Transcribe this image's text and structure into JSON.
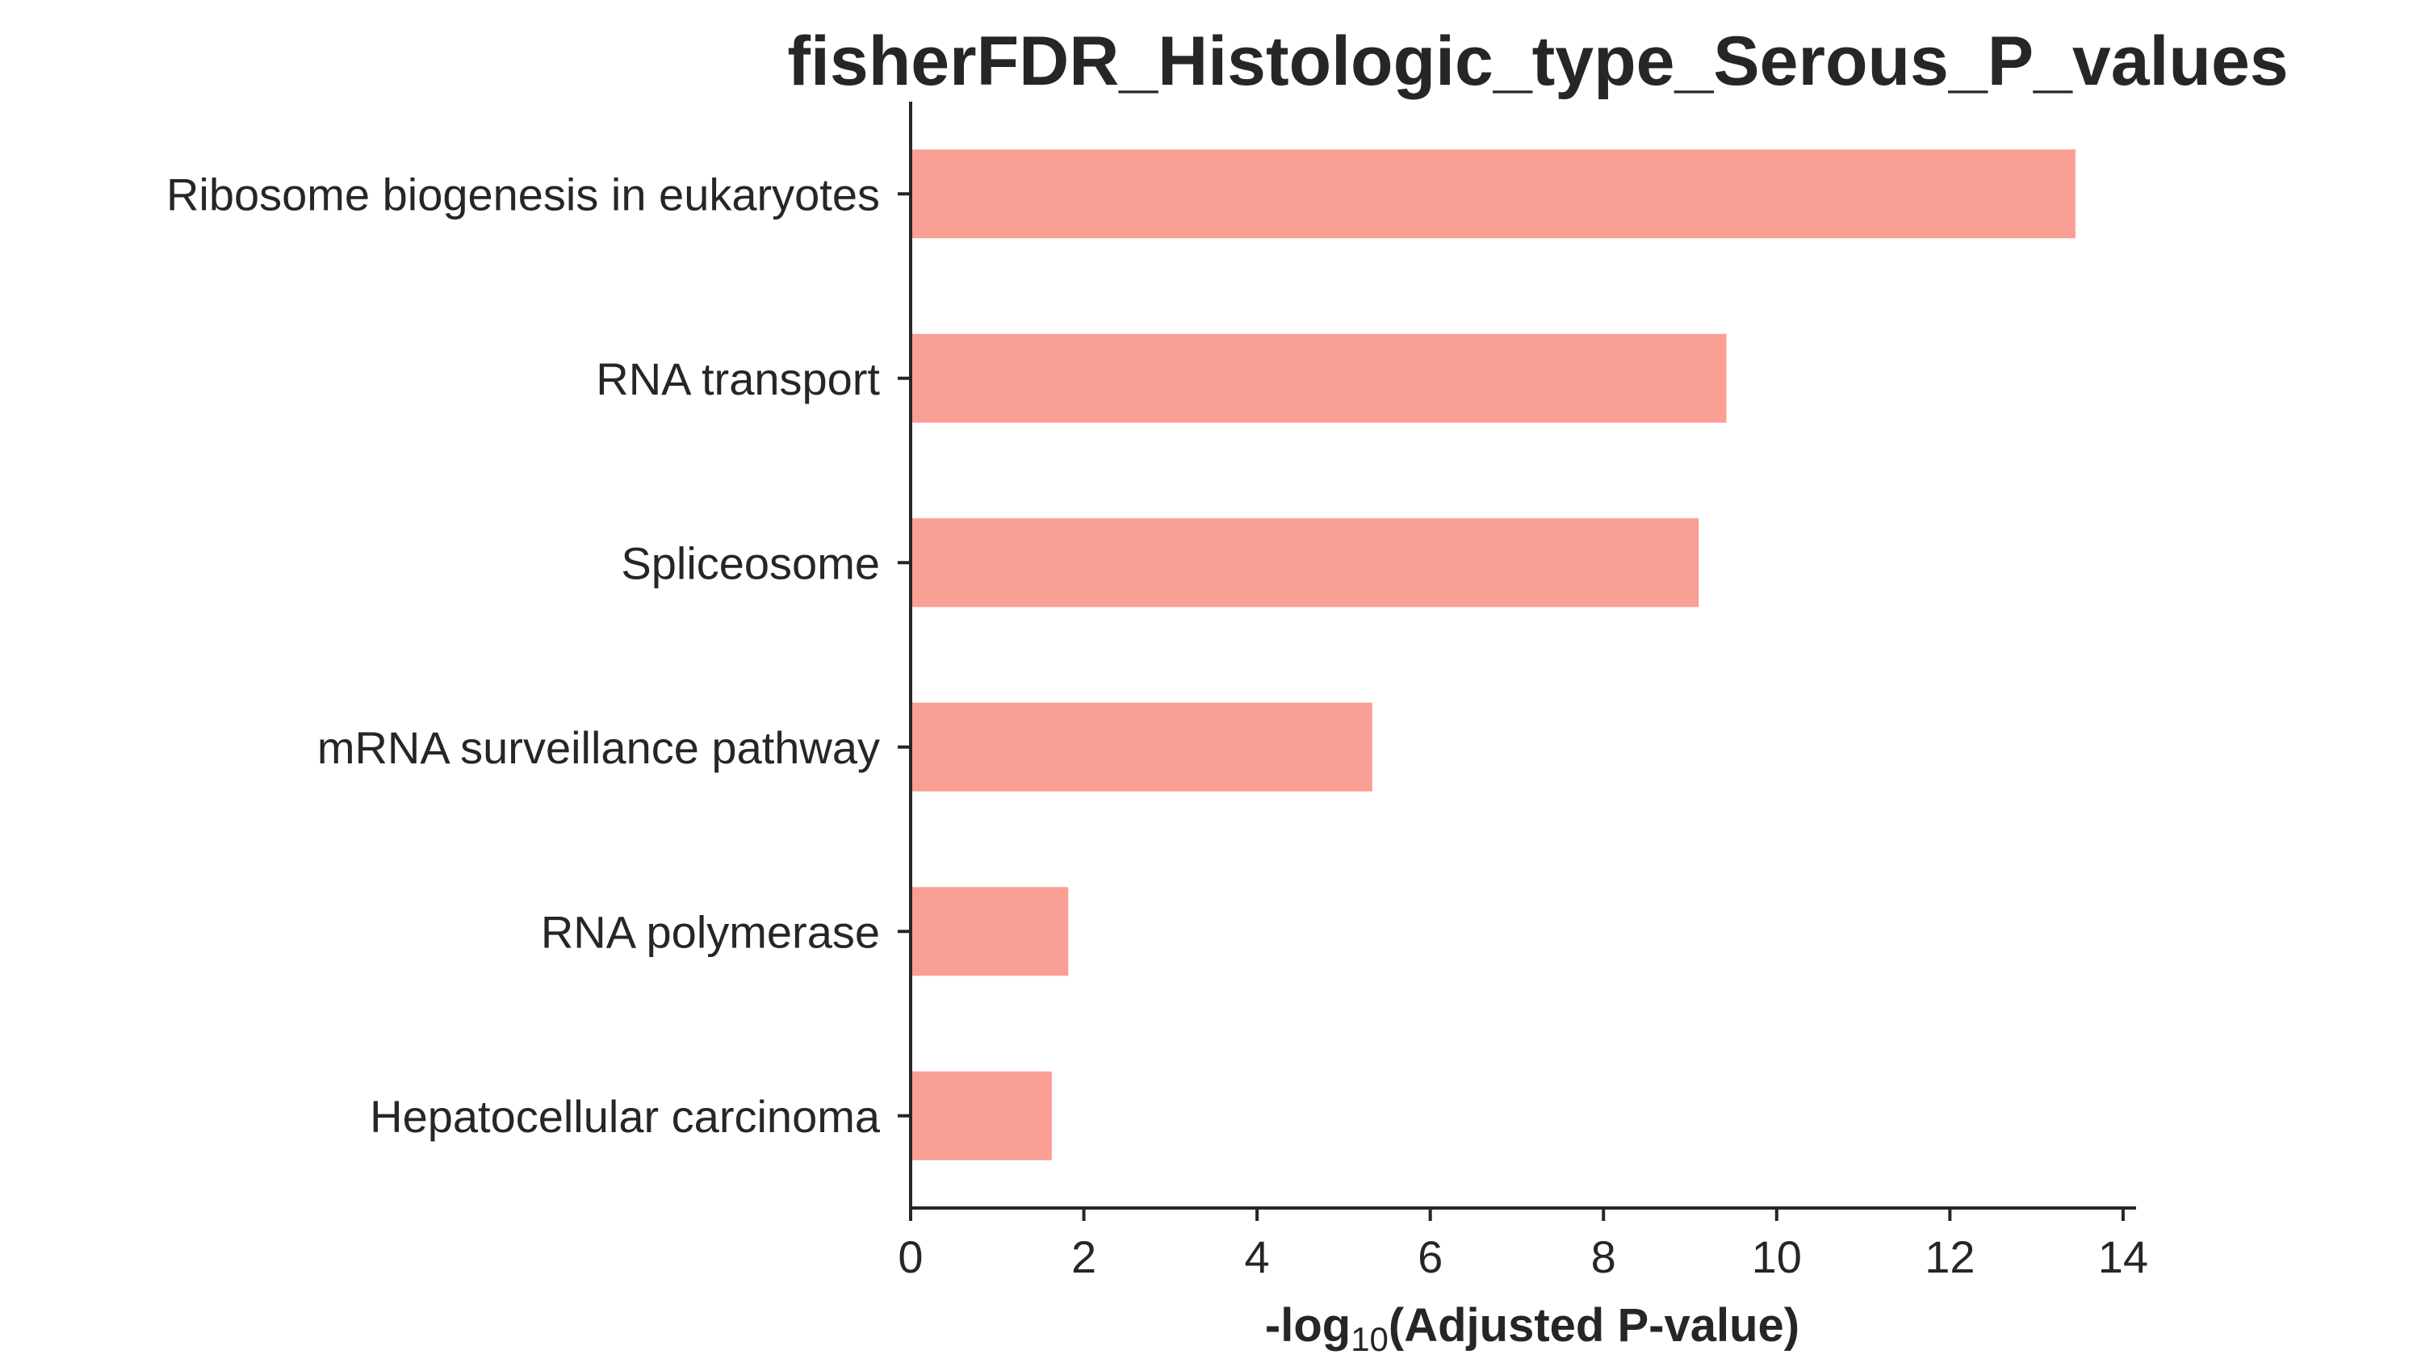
{
  "chart_data": {
    "type": "bar",
    "orientation": "horizontal",
    "title": "fisherFDR_Histologic_type_Serous_P_values",
    "xlabel": {
      "prefix": "-log",
      "subscript": "10",
      "suffix": "(Adjusted P-value)"
    },
    "ylabel": "",
    "categories": [
      "Ribosome biogenesis in eukaryotes",
      "RNA transport",
      "Spliceosome",
      "mRNA surveillance pathway",
      "RNA polymerase",
      "Hepatocellular carcinoma"
    ],
    "values": [
      13.45,
      9.42,
      9.1,
      5.33,
      1.82,
      1.63
    ],
    "xlim": [
      0,
      14.15
    ],
    "xticks": [
      0,
      2,
      4,
      6,
      8,
      10,
      12,
      14
    ],
    "bar_color": "#fa9f94",
    "axis_color": "#262626",
    "grid": false,
    "legend": "none"
  }
}
